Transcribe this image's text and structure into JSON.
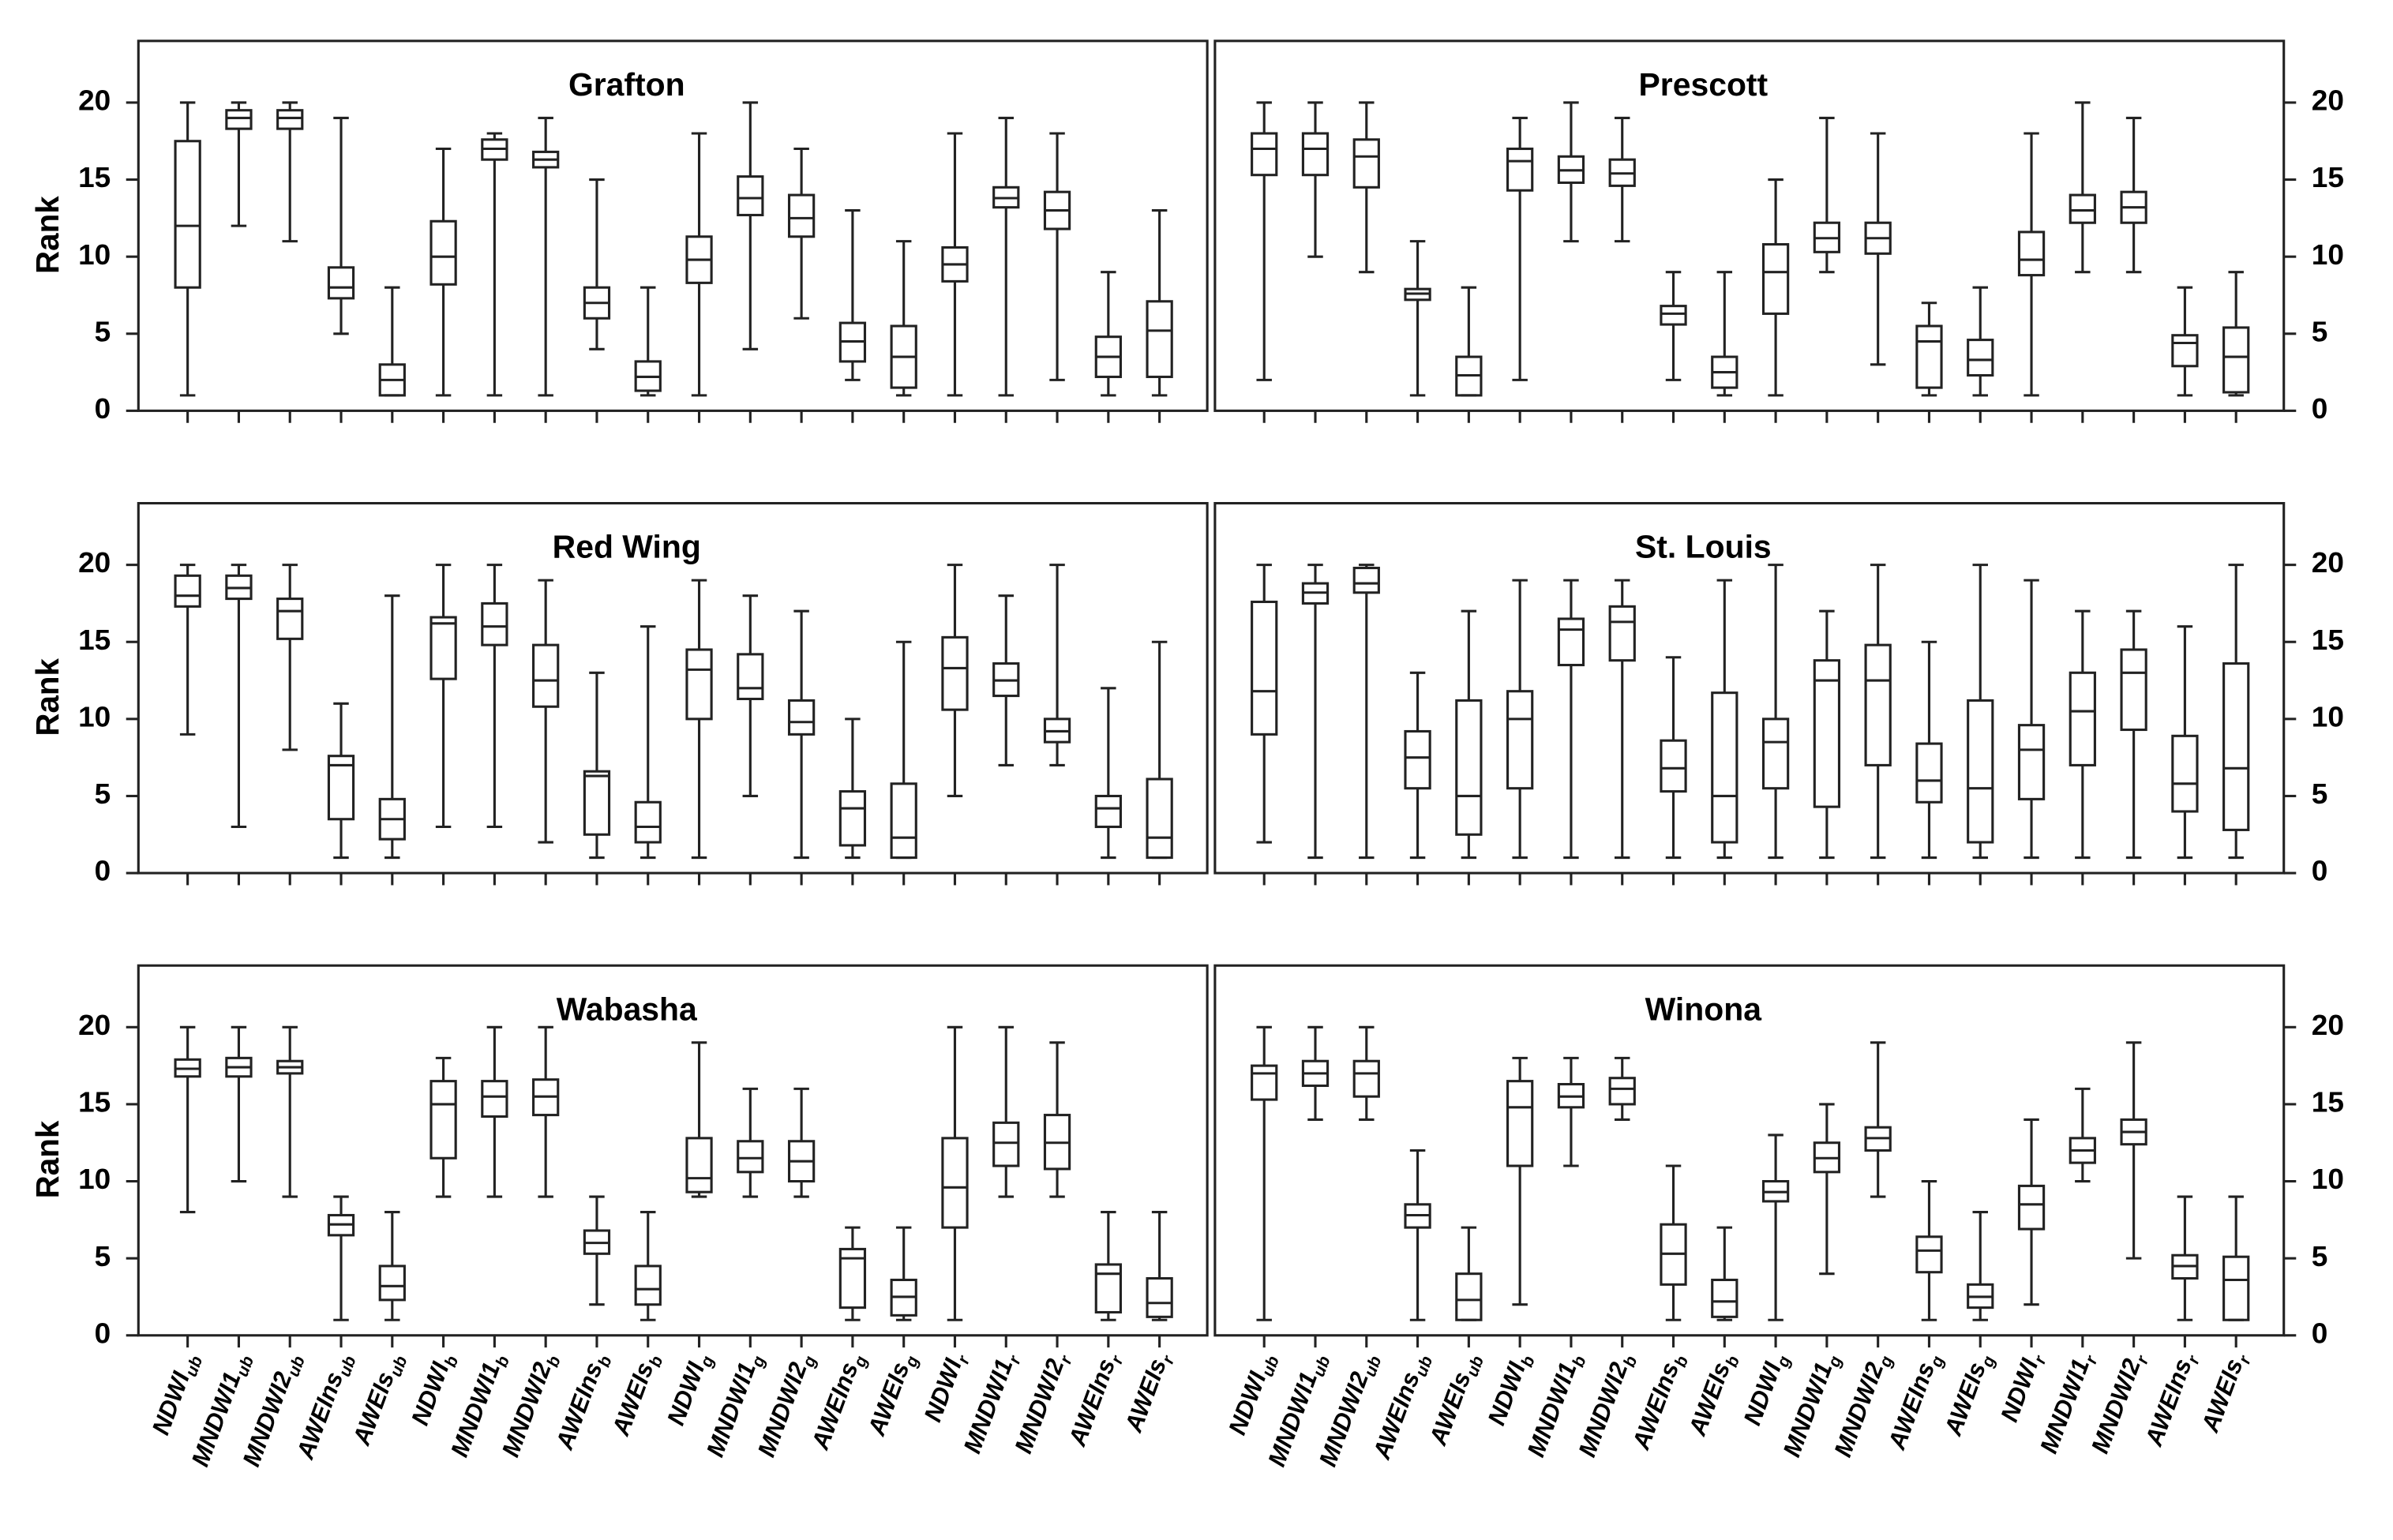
{
  "chart_data": [
    {
      "type": "box",
      "title": "Grafton",
      "y_label": "Rank",
      "ylim": [
        0,
        24
      ],
      "yticks": [
        0,
        5,
        10,
        15,
        20
      ],
      "min": [
        1,
        12,
        11,
        5,
        1,
        1,
        1,
        1,
        4,
        1,
        1,
        4,
        6,
        2,
        1,
        1,
        1,
        2,
        1,
        1
      ],
      "q1": [
        8,
        18.3,
        18.3,
        7.3,
        1,
        8.2,
        16.3,
        15.8,
        6,
        1.3,
        8.3,
        12.7,
        11.3,
        3.2,
        1.5,
        8.4,
        13.2,
        11.8,
        2.2,
        2.2
      ],
      "median": [
        12,
        19,
        19,
        8,
        2,
        10,
        17,
        16.3,
        7,
        2.2,
        9.8,
        13.8,
        12.5,
        4.5,
        3.5,
        9.5,
        13.8,
        13,
        3.5,
        5.2
      ],
      "q3": [
        17.5,
        19.5,
        19.5,
        9.3,
        3,
        12.3,
        17.6,
        16.8,
        8,
        3.2,
        11.3,
        15.2,
        14,
        5.7,
        5.5,
        10.6,
        14.5,
        14.2,
        4.8,
        7.1
      ],
      "max": [
        20,
        20,
        20,
        19,
        8,
        17,
        18,
        19,
        15,
        8,
        18,
        20,
        17,
        13,
        11,
        18,
        19,
        18,
        9,
        13
      ]
    },
    {
      "type": "box",
      "title": "Prescott",
      "ylim": [
        0,
        24
      ],
      "yticks": [
        0,
        5,
        10,
        15,
        20
      ],
      "min": [
        2,
        10,
        9,
        1,
        1,
        2,
        11,
        11,
        2,
        1,
        1,
        9,
        3,
        1,
        1,
        1,
        9,
        9,
        1,
        1
      ],
      "q1": [
        15.3,
        15.3,
        14.5,
        7.2,
        1,
        14.3,
        14.8,
        14.6,
        5.6,
        1.5,
        6.3,
        10.3,
        10.2,
        1.5,
        2.3,
        8.8,
        12.2,
        12.2,
        2.9,
        1.2
      ],
      "median": [
        17,
        17,
        16.5,
        7.6,
        2.3,
        16.2,
        15.6,
        15.4,
        6.3,
        2.5,
        9,
        11.2,
        11.2,
        4.5,
        3.3,
        9.8,
        13,
        13.2,
        4.4,
        3.5
      ],
      "q3": [
        18,
        18,
        17.6,
        7.9,
        3.5,
        17,
        16.5,
        16.3,
        6.8,
        3.5,
        10.8,
        12.2,
        12.2,
        5.5,
        4.6,
        11.6,
        14,
        14.2,
        4.9,
        5.4
      ],
      "max": [
        20,
        20,
        20,
        11,
        8,
        19,
        20,
        19,
        9,
        9,
        15,
        19,
        18,
        7,
        8,
        18,
        20,
        19,
        8,
        9
      ]
    },
    {
      "type": "box",
      "title": "Red Wing",
      "y_label": "Rank",
      "ylim": [
        0,
        24
      ],
      "yticks": [
        0,
        5,
        10,
        15,
        20
      ],
      "min": [
        9,
        3,
        8,
        1,
        1,
        3,
        3,
        2,
        1,
        1,
        1,
        5,
        1,
        1,
        1,
        5,
        7,
        7,
        1,
        1
      ],
      "q1": [
        17.3,
        17.8,
        15.2,
        3.5,
        2.2,
        12.6,
        14.8,
        10.8,
        2.5,
        2,
        10,
        11.3,
        9,
        1.8,
        1,
        10.6,
        11.5,
        8.5,
        3,
        1
      ],
      "median": [
        18,
        18.5,
        17,
        7,
        3.5,
        16.2,
        16,
        12.5,
        6.3,
        3,
        13.2,
        12,
        9.8,
        4.2,
        2.3,
        13.3,
        12.5,
        9.2,
        4.2,
        2.3
      ],
      "q3": [
        19.3,
        19.3,
        17.8,
        7.6,
        4.8,
        16.6,
        17.5,
        14.8,
        6.6,
        4.6,
        14.5,
        14.2,
        11.2,
        5.3,
        5.8,
        15.3,
        13.6,
        10,
        5,
        6.1
      ],
      "max": [
        20,
        20,
        20,
        11,
        18,
        20,
        20,
        19,
        13,
        16,
        19,
        18,
        17,
        10,
        15,
        20,
        18,
        20,
        12,
        15
      ]
    },
    {
      "type": "box",
      "title": "St. Louis",
      "ylim": [
        0,
        24
      ],
      "yticks": [
        0,
        5,
        10,
        15,
        20
      ],
      "min": [
        2,
        1,
        1,
        1,
        1,
        1,
        1,
        1,
        1,
        1,
        1,
        1,
        1,
        1,
        1,
        1,
        1,
        1,
        1,
        1
      ],
      "q1": [
        9,
        17.5,
        18.2,
        5.5,
        2.5,
        5.5,
        13.5,
        13.8,
        5.3,
        2,
        5.5,
        4.3,
        7,
        4.6,
        2,
        4.8,
        7,
        9.3,
        4,
        2.8
      ],
      "median": [
        11.8,
        18.2,
        18.8,
        7.5,
        5,
        10,
        15.8,
        16.3,
        6.8,
        5,
        8.5,
        12.5,
        12.5,
        6,
        5.5,
        8,
        10.5,
        13,
        5.8,
        6.8
      ],
      "q3": [
        17.6,
        18.8,
        19.8,
        9.2,
        11.2,
        11.8,
        16.5,
        17.3,
        8.6,
        11.7,
        10,
        13.8,
        14.8,
        8.4,
        11.2,
        9.6,
        13,
        14.5,
        8.9,
        13.6
      ],
      "max": [
        20,
        20,
        20,
        13,
        17,
        19,
        19,
        19,
        14,
        19,
        20,
        17,
        20,
        15,
        20,
        19,
        17,
        17,
        16,
        20
      ]
    },
    {
      "type": "box",
      "title": "Wabasha",
      "y_label": "Rank",
      "ylim": [
        0,
        24
      ],
      "yticks": [
        0,
        5,
        10,
        15,
        20
      ],
      "categories": [
        {
          "name": "NDWI",
          "sub": "ub"
        },
        {
          "name": "MNDWI1",
          "sub": "ub"
        },
        {
          "name": "MNDWI2",
          "sub": "ub"
        },
        {
          "name": "AWEIns",
          "sub": "ub"
        },
        {
          "name": "AWEIs",
          "sub": "ub"
        },
        {
          "name": "NDWI",
          "sub": "b"
        },
        {
          "name": "MNDWI1",
          "sub": "b"
        },
        {
          "name": "MNDWI2",
          "sub": "b"
        },
        {
          "name": "AWEIns",
          "sub": "b"
        },
        {
          "name": "AWEIs",
          "sub": "b"
        },
        {
          "name": "NDWI",
          "sub": "g"
        },
        {
          "name": "MNDWI1",
          "sub": "g"
        },
        {
          "name": "MNDWI2",
          "sub": "g"
        },
        {
          "name": "AWEIns",
          "sub": "g"
        },
        {
          "name": "AWEIs",
          "sub": "g"
        },
        {
          "name": "NDWI",
          "sub": "r"
        },
        {
          "name": "MNDWI1",
          "sub": "r"
        },
        {
          "name": "MNDWI2",
          "sub": "r"
        },
        {
          "name": "AWEIns",
          "sub": "r"
        },
        {
          "name": "AWEIs",
          "sub": "r"
        }
      ],
      "min": [
        8,
        10,
        9,
        1,
        1,
        9,
        9,
        9,
        2,
        1,
        9,
        9,
        9,
        1,
        1,
        1,
        9,
        9,
        1,
        1
      ],
      "q1": [
        16.8,
        16.8,
        17,
        6.5,
        2.3,
        11.5,
        14.2,
        14.3,
        5.3,
        2,
        9.3,
        10.6,
        10,
        1.8,
        1.3,
        7,
        11,
        10.8,
        1.5,
        1.2
      ],
      "median": [
        17.3,
        17.4,
        17.4,
        7.2,
        3.2,
        15,
        15.5,
        15.5,
        6,
        3,
        10.2,
        11.5,
        11.3,
        5,
        2.5,
        9.6,
        12.5,
        12.5,
        4,
        2.1
      ],
      "q3": [
        17.9,
        18,
        17.8,
        7.8,
        4.5,
        16.5,
        16.5,
        16.6,
        6.8,
        4.5,
        12.8,
        12.6,
        12.6,
        5.6,
        3.6,
        12.8,
        13.8,
        14.3,
        4.6,
        3.7
      ],
      "max": [
        20,
        20,
        20,
        9,
        8,
        18,
        20,
        20,
        9,
        8,
        19,
        16,
        16,
        7,
        7,
        20,
        20,
        19,
        8,
        8
      ]
    },
    {
      "type": "box",
      "title": "Winona",
      "ylim": [
        0,
        24
      ],
      "yticks": [
        0,
        5,
        10,
        15,
        20
      ],
      "categories": [
        {
          "name": "NDWI",
          "sub": "ub"
        },
        {
          "name": "MNDWI1",
          "sub": "ub"
        },
        {
          "name": "MNDWI2",
          "sub": "ub"
        },
        {
          "name": "AWEIns",
          "sub": "ub"
        },
        {
          "name": "AWEIs",
          "sub": "ub"
        },
        {
          "name": "NDWI",
          "sub": "b"
        },
        {
          "name": "MNDWI1",
          "sub": "b"
        },
        {
          "name": "MNDWI2",
          "sub": "b"
        },
        {
          "name": "AWEIns",
          "sub": "b"
        },
        {
          "name": "AWEIs",
          "sub": "b"
        },
        {
          "name": "NDWI",
          "sub": "g"
        },
        {
          "name": "MNDWI1",
          "sub": "g"
        },
        {
          "name": "MNDWI2",
          "sub": "g"
        },
        {
          "name": "AWEIns",
          "sub": "g"
        },
        {
          "name": "AWEIs",
          "sub": "g"
        },
        {
          "name": "NDWI",
          "sub": "r"
        },
        {
          "name": "MNDWI1",
          "sub": "r"
        },
        {
          "name": "MNDWI2",
          "sub": "r"
        },
        {
          "name": "AWEIns",
          "sub": "r"
        },
        {
          "name": "AWEIs",
          "sub": "r"
        }
      ],
      "min": [
        1,
        14,
        14,
        1,
        1,
        2,
        11,
        14,
        1,
        1,
        1,
        4,
        9,
        1,
        1,
        2,
        10,
        5,
        1,
        1
      ],
      "q1": [
        15.3,
        16.2,
        15.5,
        7,
        1,
        11,
        14.8,
        15,
        3.3,
        1.2,
        8.7,
        10.6,
        12,
        4.1,
        1.8,
        6.9,
        11.2,
        12.4,
        3.7,
        1
      ],
      "median": [
        17,
        17,
        17,
        7.8,
        2.3,
        14.8,
        15.5,
        16,
        5.3,
        2.2,
        9.3,
        11.5,
        12.8,
        5.5,
        2.5,
        8.5,
        12,
        13.2,
        4.5,
        3.6
      ],
      "q3": [
        17.5,
        17.8,
        17.8,
        8.5,
        4,
        16.5,
        16.3,
        16.7,
        7.2,
        3.6,
        10,
        12.5,
        13.5,
        6.4,
        3.3,
        9.7,
        12.8,
        14,
        5.2,
        5.1
      ],
      "max": [
        20,
        20,
        20,
        12,
        7,
        18,
        18,
        18,
        11,
        7,
        13,
        15,
        19,
        10,
        8,
        14,
        16,
        19,
        9,
        9
      ]
    }
  ]
}
